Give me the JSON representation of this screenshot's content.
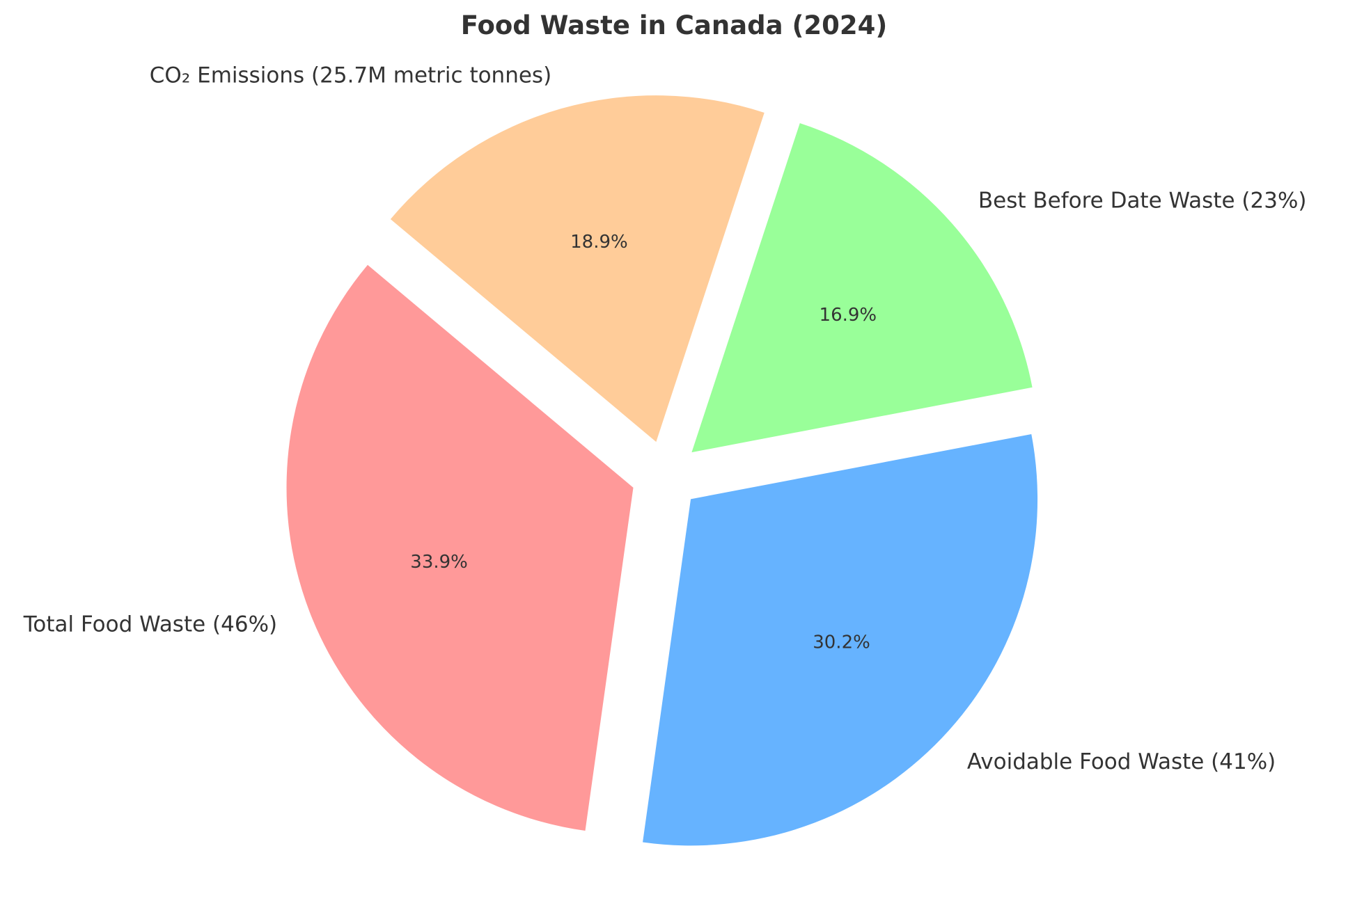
{
  "chart_data": {
    "type": "pie",
    "title": "Food Waste in Canada (2024)",
    "start_angle_deg": 140,
    "direction": "counterclockwise",
    "explode": true,
    "slices": [
      {
        "label": "Total Food Waste (46%)",
        "value": 46,
        "percent_label": "33.9%",
        "color": "#ff9999"
      },
      {
        "label": "Avoidable Food Waste (41%)",
        "value": 41,
        "percent_label": "30.2%",
        "color": "#66b3ff"
      },
      {
        "label": "Best Before Date Waste (23%)",
        "value": 23,
        "percent_label": "16.9%",
        "color": "#99ff99"
      },
      {
        "label": "CO₂ Emissions (25.7M metric tonnes)",
        "value": 25.7,
        "percent_label": "18.9%",
        "color": "#ffcc99"
      }
    ]
  }
}
